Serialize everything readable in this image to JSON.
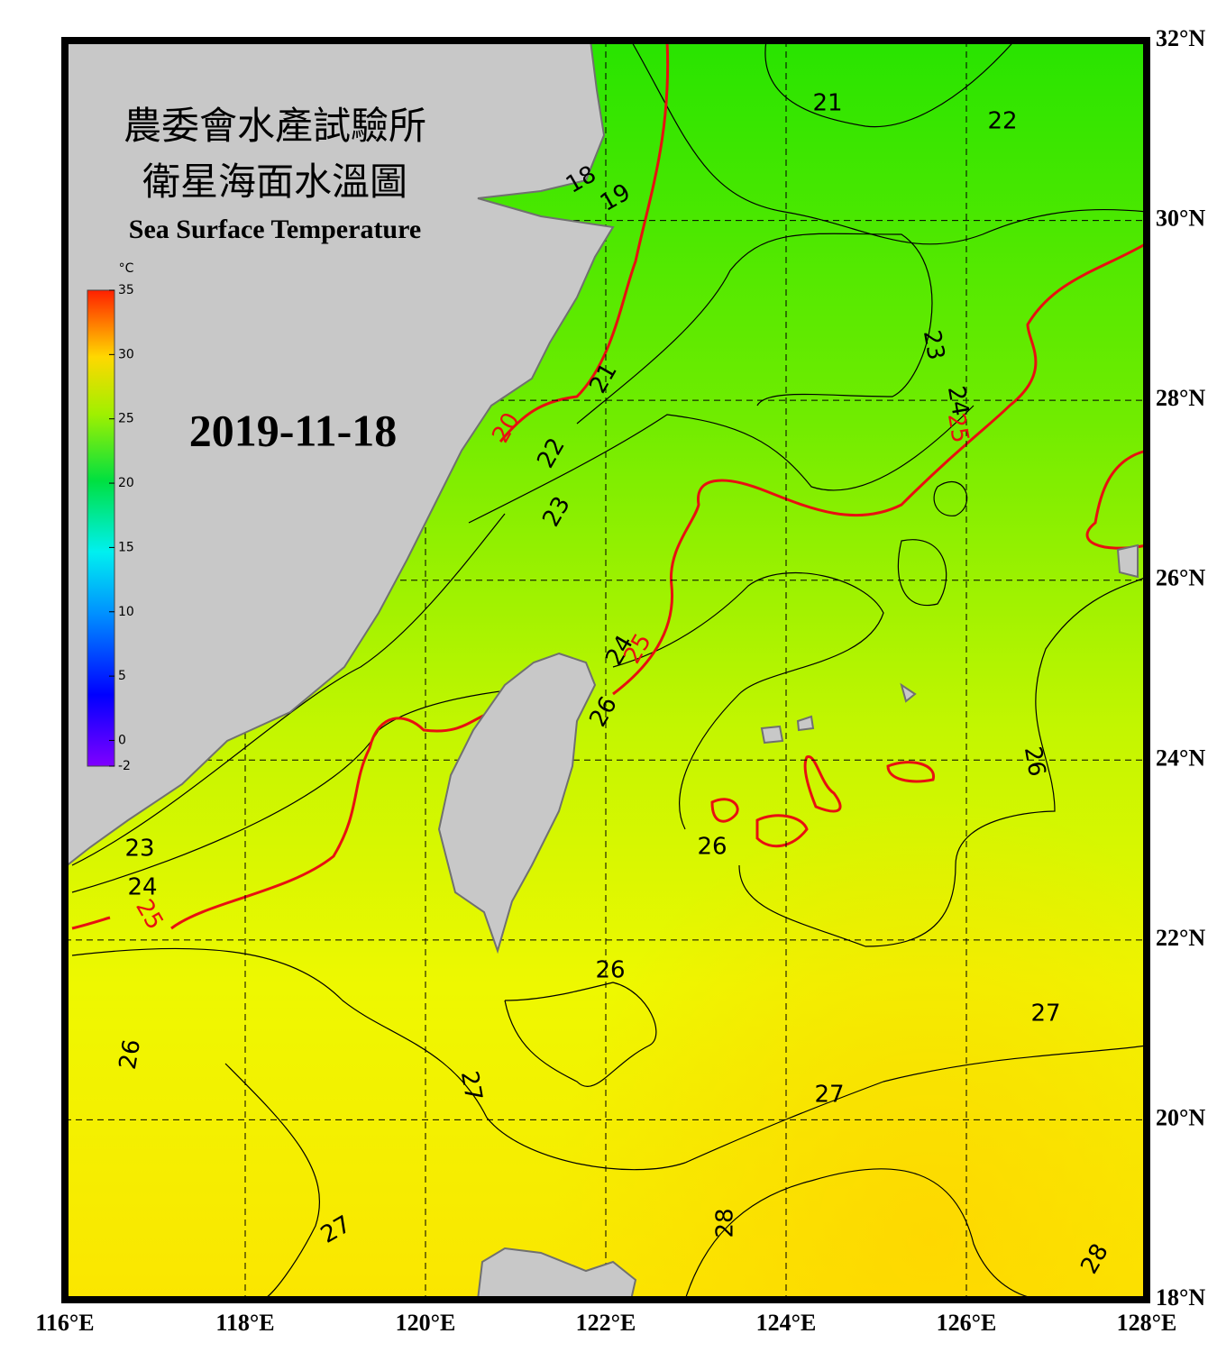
{
  "header": {
    "title_line1": "農委會水產試驗所",
    "title_line2": "衛星海面水溫圖",
    "subtitle": "Sea Surface Temperature",
    "date": "2019-11-18"
  },
  "colorbar": {
    "unit": "°C",
    "range": [
      -2,
      35
    ],
    "ticks": [
      35,
      30,
      25,
      20,
      15,
      10,
      5,
      0,
      -2
    ]
  },
  "map": {
    "lon_range": [
      116,
      128
    ],
    "lat_range": [
      18,
      32
    ],
    "lon_ticks": [
      {
        "value": 116,
        "label": "116°E"
      },
      {
        "value": 118,
        "label": "118°E"
      },
      {
        "value": 120,
        "label": "120°E"
      },
      {
        "value": 122,
        "label": "122°E"
      },
      {
        "value": 124,
        "label": "124°E"
      },
      {
        "value": 126,
        "label": "126°E"
      },
      {
        "value": 128,
        "label": "128°E"
      }
    ],
    "lat_ticks": [
      {
        "value": 18,
        "label": "18°N"
      },
      {
        "value": 20,
        "label": "20°N"
      },
      {
        "value": 22,
        "label": "22°N"
      },
      {
        "value": 24,
        "label": "24°N"
      },
      {
        "value": 26,
        "label": "26°N"
      },
      {
        "value": 28,
        "label": "28°N"
      },
      {
        "value": 30,
        "label": "30°N"
      },
      {
        "value": 32,
        "label": "32°N"
      }
    ],
    "contour_labels": [
      18,
      19,
      21,
      22,
      23,
      24,
      25,
      20,
      21,
      22,
      23,
      24,
      25,
      26,
      23,
      24,
      25,
      26,
      26,
      26,
      27,
      26,
      27,
      27,
      27,
      28,
      28
    ]
  }
}
